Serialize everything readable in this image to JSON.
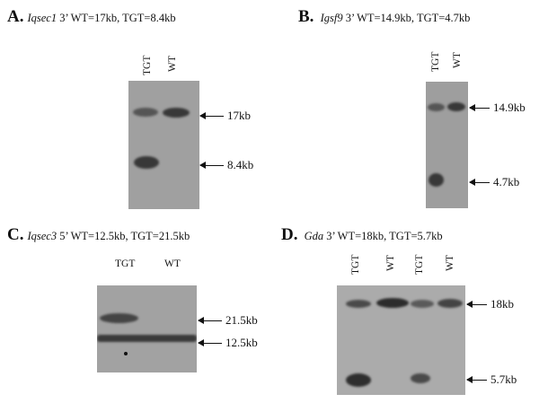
{
  "panels": [
    {
      "letter": "A.",
      "gene": "Iqsec1",
      "desc": "3’ WT=17kb, TGT=8.4kb",
      "lanes": [
        "TGT",
        "WT"
      ],
      "markers": [
        "17kb",
        "8.4kb"
      ]
    },
    {
      "letter": "B.",
      "gene": "Igsf9",
      "desc": "3’ WT=14.9kb, TGT=4.7kb",
      "lanes": [
        "TGT",
        "WT"
      ],
      "markers": [
        "14.9kb",
        "4.7kb"
      ]
    },
    {
      "letter": "C.",
      "gene": "Iqsec3",
      "desc": "5’ WT=12.5kb, TGT=21.5kb",
      "lanes": [
        "TGT",
        "WT"
      ],
      "markers": [
        "21.5kb",
        "12.5kb"
      ]
    },
    {
      "letter": "D.",
      "gene": "Gda",
      "desc": "3’ WT=18kb, TGT=5.7kb",
      "lanes": [
        "TGT",
        "WT",
        "TGT",
        "WT"
      ],
      "markers": [
        "18kb",
        "5.7kb"
      ]
    }
  ]
}
